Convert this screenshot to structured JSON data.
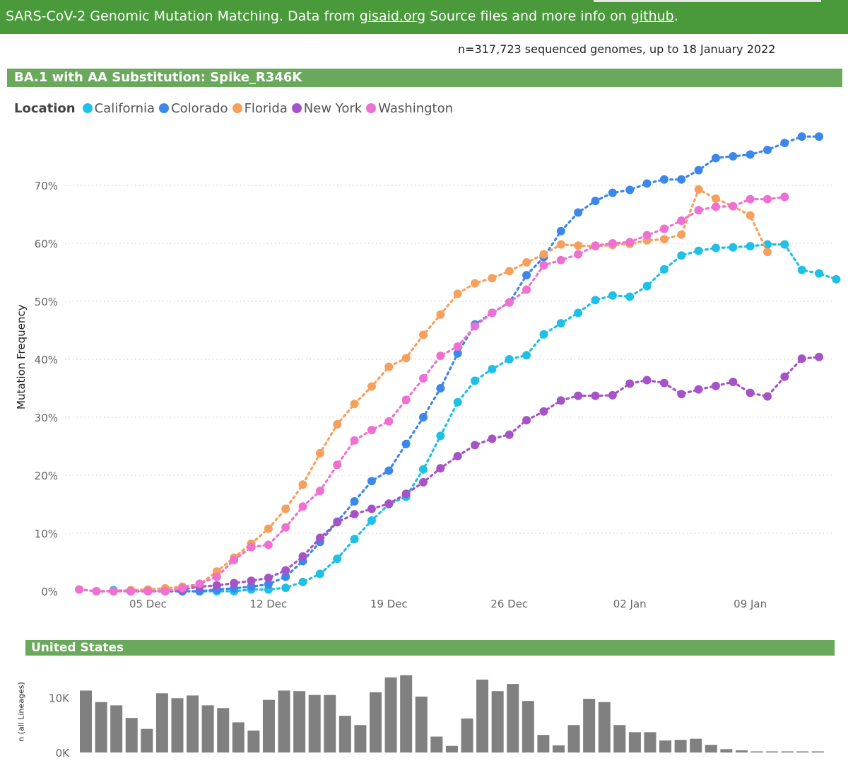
{
  "header": {
    "text_before": "SARS-CoV-2 Genomic Mutation Matching. Data from ",
    "link1": "gisaid.org",
    "text_middle": " Source files and more info on ",
    "link2": "github",
    "text_after": "."
  },
  "genome_count": "n=317,723 sequenced genomes, up to 18 January 2022",
  "section_main_title": "BA.1 with AA Substitution: Spike_R346K",
  "section_us_title": "United States",
  "legend": {
    "title": "Location",
    "items": [
      {
        "name": "California",
        "color": "#1fc0e6"
      },
      {
        "name": "Colorado",
        "color": "#3c87ea"
      },
      {
        "name": "Florida",
        "color": "#f7a05e"
      },
      {
        "name": "New York",
        "color": "#a553c6"
      },
      {
        "name": "Washington",
        "color": "#ee70d3"
      }
    ]
  },
  "chart_data": [
    {
      "type": "line",
      "title": "BA.1 with AA Substitution: Spike_R346K",
      "xlabel": "",
      "ylabel": "Mutation Frequency",
      "ylim": [
        0,
        80
      ],
      "yticks": [
        "0%",
        "10%",
        "20%",
        "30%",
        "40%",
        "50%",
        "60%",
        "70%"
      ],
      "x_tick_labels": [
        "05 Dec",
        "12 Dec",
        "19 Dec",
        "26 Dec",
        "02 Jan",
        "09 Jan"
      ],
      "x_tick_index": [
        4,
        11,
        18,
        25,
        32,
        39
      ],
      "x_start": "01 Dec",
      "num_days": 44,
      "grid": true,
      "legend": "top-left",
      "series": [
        {
          "name": "California",
          "color": "#1fc0e6",
          "start": 2,
          "values": [
            0.2,
            0,
            0,
            0,
            0,
            0,
            0,
            0,
            0.3,
            0.3,
            0.6,
            1.6,
            3,
            5.6,
            9,
            12.2,
            15,
            16.3,
            21,
            26.8,
            32.6,
            36.3,
            38.3,
            40,
            40.7,
            44.3,
            46.2,
            48,
            50.2,
            51,
            50.8,
            52.6,
            55.5,
            57.9,
            58.7,
            59.2,
            59.3,
            59.5,
            59.8,
            59.8,
            55.4,
            54.8,
            53.8
          ]
        },
        {
          "name": "Colorado",
          "color": "#3c87ea",
          "start": 3,
          "values": [
            0,
            0,
            0,
            0,
            0,
            0.3,
            0.5,
            0.8,
            1.2,
            2.5,
            5.2,
            8.5,
            12,
            15.5,
            19,
            20.8,
            25.4,
            30,
            35,
            41,
            46,
            48,
            49.8,
            54.5,
            57.6,
            62.1,
            65.3,
            67.3,
            68.7,
            69.2,
            70.3,
            71,
            71,
            72.6,
            74.7,
            75,
            75.3,
            76.1,
            77.3,
            78.4,
            78.4
          ]
        },
        {
          "name": "Florida",
          "color": "#f7a05e",
          "start": 0,
          "values": [
            0.3,
            0,
            0,
            0.2,
            0.3,
            0.5,
            0.8,
            1.2,
            3.4,
            5.8,
            8.2,
            10.8,
            14.2,
            18.4,
            23.8,
            28.8,
            32.3,
            35.3,
            38.7,
            40.2,
            44.2,
            47.7,
            51.3,
            53.1,
            54,
            55.2,
            56.7,
            58.1,
            59.8,
            59.6,
            59.5,
            59.7,
            59.9,
            60.5,
            60.7,
            61.5,
            69.3,
            67.7,
            66.4,
            64.8,
            58.5
          ]
        },
        {
          "name": "New York",
          "color": "#a553c6",
          "start": 1,
          "values": [
            0,
            0,
            0,
            0,
            0,
            0.3,
            0.8,
            1,
            1.4,
            1.8,
            2.3,
            3.6,
            6,
            9.2,
            11.9,
            13.3,
            14.2,
            15.1,
            16.8,
            18.8,
            21.2,
            23.3,
            25.2,
            26.3,
            27,
            29.5,
            31,
            32.9,
            33.7,
            33.7,
            33.8,
            35.8,
            36.4,
            35.9,
            34,
            34.8,
            35.4,
            36.1,
            34.2,
            33.6,
            37,
            40.1,
            40.4
          ]
        },
        {
          "name": "Washington",
          "color": "#ee70d3",
          "start": 0,
          "values": [
            0.3,
            0,
            0,
            0,
            0,
            0,
            0.5,
            1.3,
            2.5,
            5.4,
            7.6,
            8,
            11,
            14.6,
            17.3,
            21.8,
            26,
            27.8,
            29.3,
            33,
            36.7,
            40.6,
            42.2,
            45.7,
            48,
            49.8,
            52,
            56.2,
            57.1,
            58.1,
            59.6,
            60,
            60.2,
            61.4,
            62.5,
            63.9,
            65.7,
            66.3,
            66.4,
            67.6,
            67.6,
            68
          ]
        }
      ]
    },
    {
      "type": "bar",
      "title": "United States",
      "ylabel": "n (all Lineages)",
      "ylim": [
        0,
        14000
      ],
      "yticks": [
        "0K",
        "10K"
      ],
      "values": [
        11300,
        9200,
        8600,
        6300,
        4300,
        10800,
        9900,
        10400,
        8600,
        8100,
        5500,
        4000,
        9600,
        11300,
        11200,
        10500,
        10500,
        6700,
        5000,
        11000,
        13700,
        14100,
        10200,
        2900,
        1200,
        6200,
        13300,
        11200,
        12500,
        9400,
        3200,
        1300,
        5000,
        9800,
        9200,
        5000,
        3700,
        3700,
        2200,
        2300,
        2500,
        1400,
        600,
        400,
        200,
        200,
        200,
        200,
        200
      ]
    }
  ]
}
